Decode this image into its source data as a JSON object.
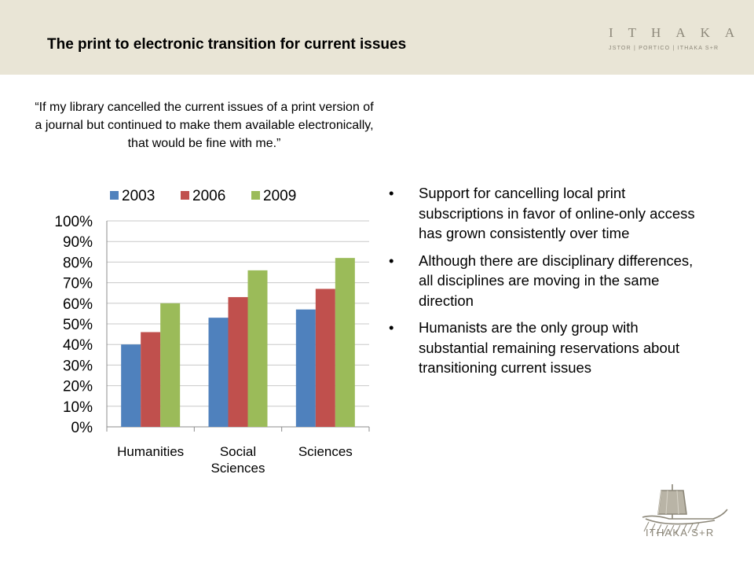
{
  "slide": {
    "title": "The print to electronic transition for current issues",
    "brand_name": "ITHAKA",
    "brand_tagline": "JSTOR | PORTICO | ITHAKA S+R",
    "logo_text": "ITHAKA S+R",
    "quote": "“If my library cancelled the current issues of a print version of a journal but continued to make them available electronically, that would be fine with me.”",
    "bullets": [
      "Support for cancelling local print subscriptions in favor of online-only access has grown consistently over time",
      "Although there are disciplinary differences, all disciplines are moving in the same direction",
      "Humanists are the only group with substantial remaining reservations about transitioning current issues"
    ],
    "bullet_glyph": "•"
  },
  "colors": {
    "header_band": "#e9e5d6",
    "brand": "#8c8779",
    "series_2003": "#4f81bd",
    "series_2006": "#c0504d",
    "series_2009": "#9bbb59"
  },
  "chart_data": {
    "type": "bar",
    "title": "",
    "xlabel": "",
    "ylabel": "",
    "categories": [
      "Humanities",
      "Social Sciences",
      "Sciences"
    ],
    "category_lines": [
      [
        "Humanities"
      ],
      [
        "Social",
        "Sciences"
      ],
      [
        "Sciences"
      ]
    ],
    "series": [
      {
        "name": "2003",
        "color": "#4f81bd",
        "values": [
          40,
          53,
          57
        ]
      },
      {
        "name": "2006",
        "color": "#c0504d",
        "values": [
          46,
          63,
          67
        ]
      },
      {
        "name": "2009",
        "color": "#9bbb59",
        "values": [
          60,
          76,
          82
        ]
      }
    ],
    "ylim": [
      0,
      100
    ],
    "y_ticks": [
      "0%",
      "10%",
      "20%",
      "30%",
      "40%",
      "50%",
      "60%",
      "70%",
      "80%",
      "90%",
      "100%"
    ],
    "grid": true,
    "legend_position": "top"
  }
}
